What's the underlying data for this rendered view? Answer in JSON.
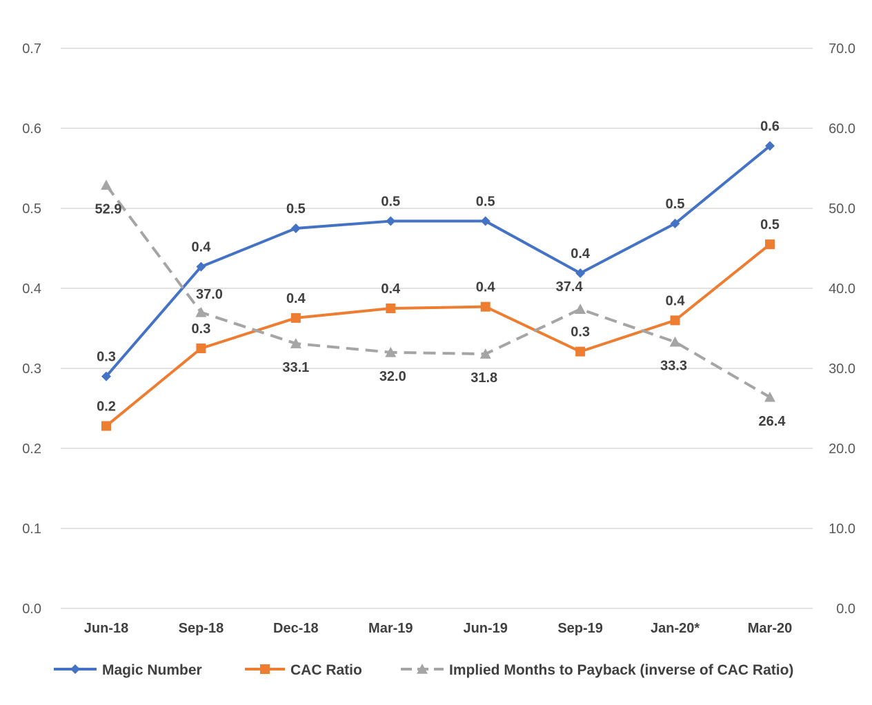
{
  "chart_data": {
    "type": "line",
    "title": "",
    "categories": [
      "Jun-18",
      "Sep-18",
      "Dec-18",
      "Mar-19",
      "Jun-19",
      "Sep-19",
      "Jan-20*",
      "Mar-20"
    ],
    "y_left": {
      "min": 0,
      "max": 0.7,
      "step": 0.1,
      "decimals": 1
    },
    "y_right": {
      "min": 0,
      "max": 70,
      "step": 10,
      "decimals": 1
    },
    "grid": true,
    "legend_position": "bottom",
    "series": [
      {
        "name": "Magic Number",
        "axis": "left",
        "color": "#4472C4",
        "marker": "diamond",
        "dash": "solid",
        "values": [
          0.29,
          0.427,
          0.475,
          0.484,
          0.484,
          0.419,
          0.481,
          0.578
        ],
        "labels": [
          "0.3",
          "0.4",
          "0.5",
          "0.5",
          "0.5",
          "0.4",
          "0.5",
          "0.6"
        ]
      },
      {
        "name": "CAC Ratio",
        "axis": "left",
        "color": "#ED7D31",
        "marker": "square",
        "dash": "solid",
        "values": [
          0.228,
          0.325,
          0.363,
          0.375,
          0.377,
          0.321,
          0.36,
          0.455
        ],
        "labels": [
          "0.2",
          "0.3",
          "0.4",
          "0.4",
          "0.4",
          "0.3",
          "0.4",
          "0.5"
        ]
      },
      {
        "name": "Implied Months to Payback (inverse of CAC Ratio)",
        "axis": "right",
        "color": "#A5A5A5",
        "marker": "triangle",
        "dash": "dashed",
        "values": [
          52.9,
          37.0,
          33.1,
          32.0,
          31.8,
          37.4,
          33.3,
          26.4
        ],
        "labels": [
          "52.9",
          "37.0",
          "33.1",
          "32.0",
          "31.8",
          "37.4",
          "33.3",
          "26.4"
        ]
      }
    ]
  }
}
